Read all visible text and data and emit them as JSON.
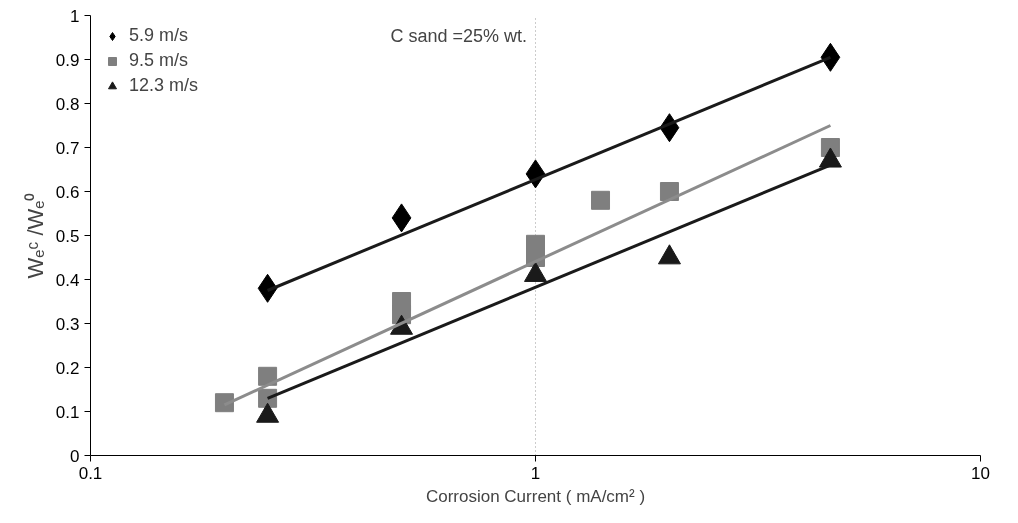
{
  "chart_data": {
    "type": "scatter",
    "xlabel": "Corrosion Current ( mA/cm² )",
    "ylabel": "Wₑᶜ /Wₑ⁰",
    "log": "x",
    "xlim": [
      0.1,
      10
    ],
    "xticks": [
      0.1,
      1,
      10
    ],
    "ylim": [
      0,
      1
    ],
    "yticks": [
      0,
      0.1,
      0.2,
      0.3,
      0.4,
      0.5,
      0.6,
      0.7,
      0.8,
      0.9,
      1
    ],
    "grid": "x",
    "legend": "top left",
    "annotations": [
      "C sand =25% wt."
    ],
    "series": [
      {
        "name": "5.9 m/s",
        "color": "#000000",
        "marker": "diamond",
        "x": [
          0.25,
          0.5,
          1,
          2,
          4.6
        ],
        "values": [
          0.38,
          0.54,
          0.64,
          0.745,
          0.905
        ]
      },
      {
        "name": "9.5 m/s",
        "color": "#7f7f7f",
        "marker": "square",
        "x": [
          0.2,
          0.25,
          0.25,
          0.5,
          0.5,
          1,
          1,
          1.4,
          2,
          4.6
        ],
        "values": [
          0.12,
          0.18,
          0.13,
          0.35,
          0.32,
          0.48,
          0.45,
          0.58,
          0.6,
          0.7
        ]
      },
      {
        "name": "12.3 m/s",
        "color": "#1a1a1a",
        "marker": "triangle",
        "x": [
          0.25,
          0.5,
          1,
          2,
          4.6
        ],
        "values": [
          0.09,
          0.29,
          0.41,
          0.45,
          0.67
        ]
      },
      {
        "type": "line",
        "color": "#1a1a1a",
        "x": [
          0.25,
          4.6
        ],
        "values": [
          0.375,
          0.905
        ]
      },
      {
        "type": "line",
        "color": "#8c8c8c",
        "x": [
          0.2,
          4.6
        ],
        "values": [
          0.115,
          0.75
        ]
      },
      {
        "type": "line",
        "color": "#1a1a1a",
        "x": [
          0.25,
          4.6
        ],
        "values": [
          0.13,
          0.66
        ]
      }
    ]
  }
}
